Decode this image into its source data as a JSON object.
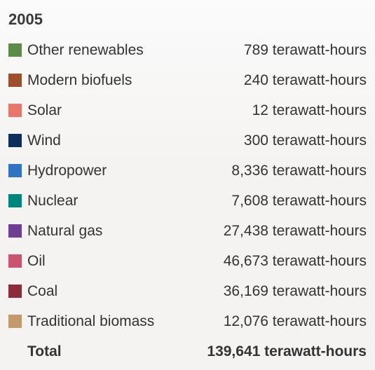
{
  "tooltip": {
    "year": "2005",
    "rows": [
      {
        "label": "Other renewables",
        "value": "789 terawatt-hours",
        "color": "#5d8c4a"
      },
      {
        "label": "Modern biofuels",
        "value": "240 terawatt-hours",
        "color": "#9c4f2a"
      },
      {
        "label": "Solar",
        "value": "12 terawatt-hours",
        "color": "#e8766a"
      },
      {
        "label": "Wind",
        "value": "300 terawatt-hours",
        "color": "#0c2f5e"
      },
      {
        "label": "Hydropower",
        "value": "8,336 terawatt-hours",
        "color": "#2f73c2"
      },
      {
        "label": "Nuclear",
        "value": "7,608 terawatt-hours",
        "color": "#00847e"
      },
      {
        "label": "Natural gas",
        "value": "27,438 terawatt-hours",
        "color": "#6d3e91"
      },
      {
        "label": "Oil",
        "value": "46,673 terawatt-hours",
        "color": "#c9566e"
      },
      {
        "label": "Coal",
        "value": "36,169 terawatt-hours",
        "color": "#8a2c3a"
      },
      {
        "label": "Traditional biomass",
        "value": "12,076 terawatt-hours",
        "color": "#c49a6c"
      }
    ],
    "total": {
      "label": "Total",
      "value": "139,641 terawatt-hours"
    }
  }
}
